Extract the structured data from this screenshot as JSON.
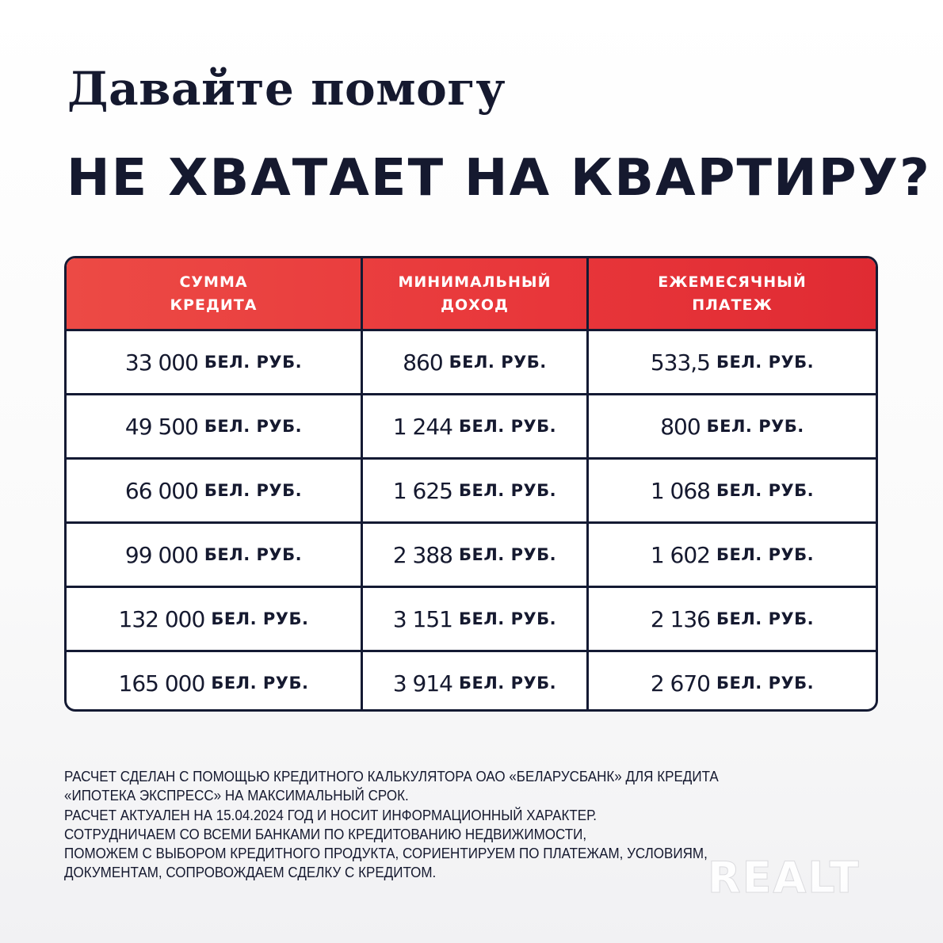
{
  "header": {
    "title_line1": "Давайте помогу",
    "title_line2": "НЕ ХВАТАЕТ НА КВАРТИРУ?"
  },
  "table": {
    "columns": [
      "СУММА\nКРЕДИТА",
      "МИНИМАЛЬНЫЙ\nДОХОД",
      "ЕЖЕМЕСЯЧНЫЙ\nПЛАТЕЖ"
    ],
    "currency": "БЕЛ. РУБ.",
    "rows": [
      [
        "33 000",
        "860",
        "533,5"
      ],
      [
        "49 500",
        "1 244",
        "800"
      ],
      [
        "66 000",
        "1 625",
        "1 068"
      ],
      [
        "99 000",
        "2 388",
        "1 602"
      ],
      [
        "132 000",
        "3 151",
        "2 136"
      ],
      [
        "165 000",
        "3 914",
        "2 670"
      ]
    ]
  },
  "footer": {
    "lines": [
      "РАСЧЕТ СДЕЛАН С ПОМОЩЬЮ КРЕДИТНОГО КАЛЬКУЛЯТОРА ОАО «БЕЛАРУСБАНК» ДЛЯ КРЕДИТА",
      "«ИПОТЕКА ЭКСПРЕСС» НА МАКСИМАЛЬНЫЙ СРОК.",
      "РАСЧЕТ АКТУАЛЕН НА 15.04.2024 ГОД И НОСИТ ИНФОРМАЦИОННЫЙ ХАРАКТЕР.",
      "СОТРУДНИЧАЕМ СО ВСЕМИ БАНКАМИ ПО КРЕДИТОВАНИЮ НЕДВИЖИМОСТИ,",
      "ПОМОЖЕМ С ВЫБОРОМ КРЕДИТНОГО ПРОДУКТА, СОРИЕНТИРУЕМ ПО ПЛАТЕЖАМ, УСЛОВИЯМ,",
      "ДОКУМЕНТАМ, СОПРОВОЖДАЕМ СДЕЛКУ С КРЕДИТОМ."
    ]
  },
  "watermark": "REALT",
  "colors": {
    "accent_red": "#e8363a",
    "navy": "#15192f"
  }
}
